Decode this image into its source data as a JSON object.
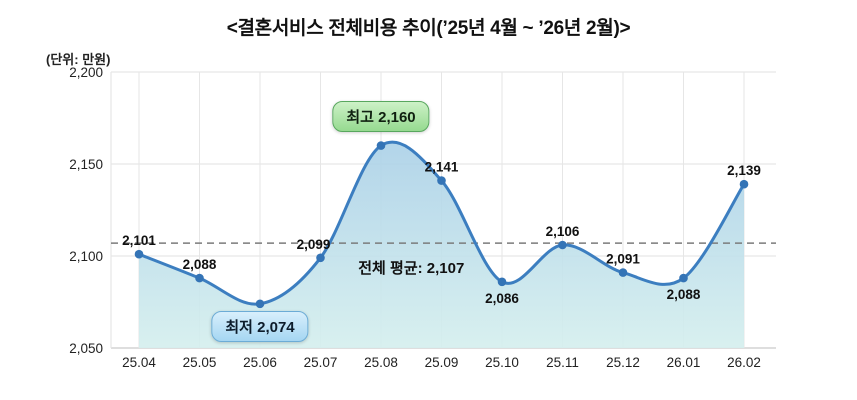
{
  "title": "<결혼서비스 전체비용 추이(’25년 4월 ~ ’26년 2월)>",
  "unit_label": "(단위: 만원)",
  "chart_data": {
    "type": "line",
    "categories": [
      "25.04",
      "25.05",
      "25.06",
      "25.07",
      "25.08",
      "25.09",
      "25.10",
      "25.11",
      "25.12",
      "26.01",
      "26.02"
    ],
    "values": [
      2101,
      2088,
      2074,
      2099,
      2160,
      2141,
      2086,
      2106,
      2091,
      2088,
      2139
    ],
    "value_labels": [
      "2,101",
      "2,088",
      "2,074",
      "2,099",
      "2,160",
      "2,141",
      "2,086",
      "2,106",
      "2,091",
      "2,088",
      "2,139"
    ],
    "label_placement": [
      "above",
      "above",
      "badge-min",
      "above-left",
      "badge-max",
      "above",
      "below",
      "above",
      "above",
      "below",
      "above"
    ],
    "average": 2107,
    "average_label": "전체 평균: 2,107",
    "max_badge_label": "최고 2,160",
    "min_badge_label": "최저 2,074",
    "y_ticks": [
      {
        "value": 2050,
        "label": "2,050"
      },
      {
        "value": 2100,
        "label": "2,100"
      },
      {
        "value": 2150,
        "label": "2,150"
      },
      {
        "value": 2200,
        "label": "2,200"
      }
    ],
    "ylim": [
      2050,
      2200
    ],
    "grid": true,
    "area_fill": true,
    "legend": "none",
    "colors": {
      "line": "#3c7ec0",
      "point": "#3474b6",
      "area_top": "#9cc6e5",
      "area_bottom": "#d5efee",
      "grid": "#e6e6e6",
      "axis": "#c9c9c9",
      "average_line": "#7b7b7b",
      "text": "#1a1a1a"
    }
  }
}
